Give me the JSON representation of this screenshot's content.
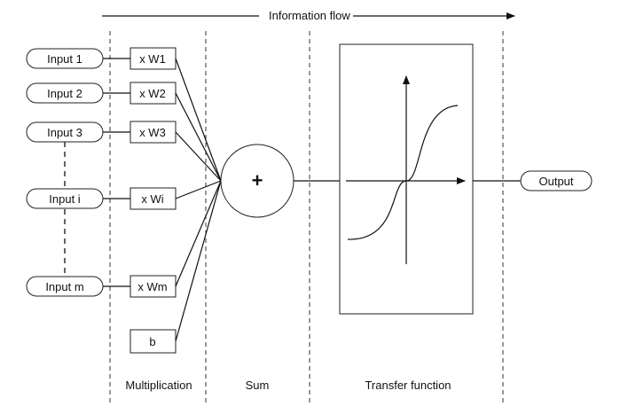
{
  "header": {
    "flow_label": "Information flow"
  },
  "inputs": [
    "Input 1",
    "Input 2",
    "Input 3",
    "Input i",
    "Input m"
  ],
  "weights": [
    "x W1",
    "x W2",
    "x W3",
    "x Wi",
    "x Wm"
  ],
  "bias_label": "b",
  "sum_symbol": "+",
  "output_label": "Output",
  "stages": {
    "multiplication": "Multiplication",
    "sum": "Sum",
    "transfer": "Transfer function"
  }
}
